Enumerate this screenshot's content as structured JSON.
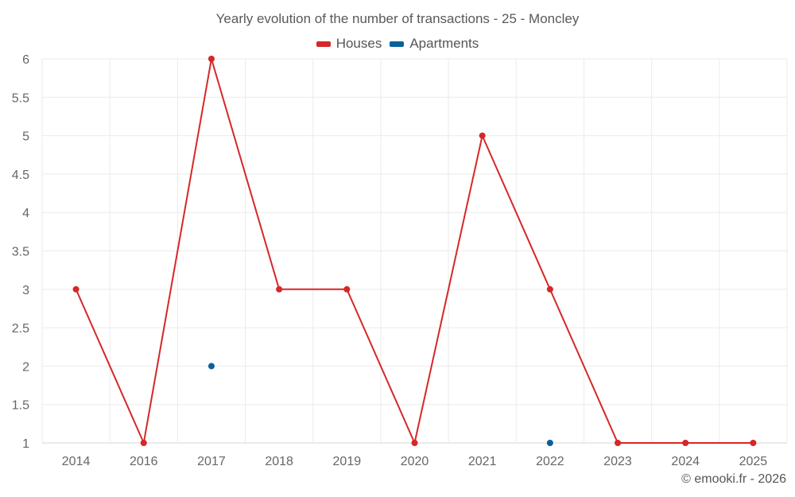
{
  "chart_data": {
    "type": "line",
    "title": "Yearly evolution of the number of transactions - 25 - Moncley",
    "categories": [
      "2014",
      "2016",
      "2017",
      "2018",
      "2019",
      "2020",
      "2021",
      "2022",
      "2023",
      "2024",
      "2025"
    ],
    "series": [
      {
        "name": "Houses",
        "color": "#d62728",
        "values": [
          3,
          1,
          6,
          3,
          3,
          1,
          5,
          3,
          1,
          1,
          1
        ]
      },
      {
        "name": "Apartments",
        "color": "#0a6199",
        "values": [
          null,
          null,
          2,
          null,
          null,
          null,
          null,
          1,
          null,
          null,
          null
        ]
      }
    ],
    "ylim": [
      1,
      6
    ],
    "yticks": [
      "1",
      "1.5",
      "2",
      "2.5",
      "3",
      "3.5",
      "4",
      "4.5",
      "5",
      "5.5",
      "6"
    ],
    "grid": true,
    "legend_position": "top-center"
  },
  "credit": "© emooki.fr - 2026"
}
